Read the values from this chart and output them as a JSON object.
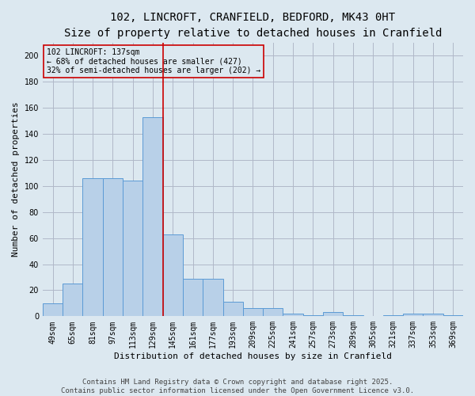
{
  "title_line1": "102, LINCROFT, CRANFIELD, BEDFORD, MK43 0HT",
  "title_line2": "Size of property relative to detached houses in Cranfield",
  "xlabel": "Distribution of detached houses by size in Cranfield",
  "ylabel": "Number of detached properties",
  "categories": [
    "49sqm",
    "65sqm",
    "81sqm",
    "97sqm",
    "113sqm",
    "129sqm",
    "145sqm",
    "161sqm",
    "177sqm",
    "193sqm",
    "209sqm",
    "225sqm",
    "241sqm",
    "257sqm",
    "273sqm",
    "289sqm",
    "305sqm",
    "321sqm",
    "337sqm",
    "353sqm",
    "369sqm"
  ],
  "values": [
    10,
    25,
    106,
    106,
    104,
    153,
    63,
    29,
    29,
    11,
    6,
    6,
    2,
    1,
    3,
    1,
    0,
    1,
    2,
    2,
    1
  ],
  "bar_color": "#b8d0e8",
  "bar_edge_color": "#5b9bd5",
  "grid_color": "#b0b8c8",
  "bg_color": "#dce8f0",
  "vline_x": 5.5,
  "vline_color": "#cc0000",
  "annotation_text": "102 LINCROFT: 137sqm\n← 68% of detached houses are smaller (427)\n32% of semi-detached houses are larger (202) →",
  "annotation_box_color": "#cc0000",
  "ylim": [
    0,
    210
  ],
  "yticks": [
    0,
    20,
    40,
    60,
    80,
    100,
    120,
    140,
    160,
    180,
    200
  ],
  "footer_line1": "Contains HM Land Registry data © Crown copyright and database right 2025.",
  "footer_line2": "Contains public sector information licensed under the Open Government Licence v3.0.",
  "title_fontsize": 10,
  "subtitle_fontsize": 9,
  "axis_label_fontsize": 8,
  "tick_fontsize": 7,
  "annotation_fontsize": 7,
  "footer_fontsize": 6.5
}
